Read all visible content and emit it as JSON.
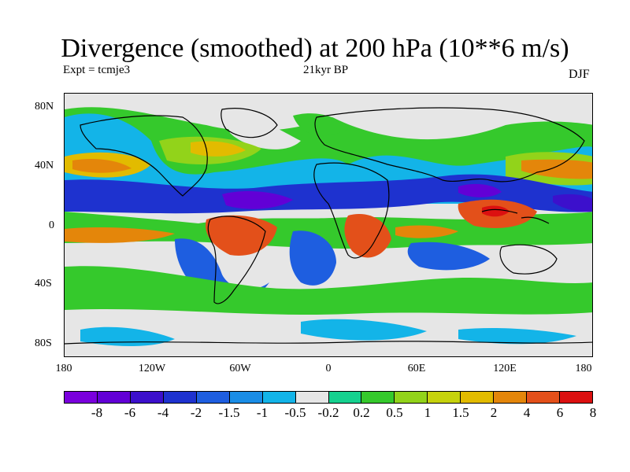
{
  "title": "Divergence (smoothed) at 200 hPa (10**6 m/s)",
  "subtitle_left": "Expt = tcmje3",
  "subtitle_center": "21kyr BP",
  "subtitle_right": "DJF",
  "map": {
    "projection": "equirectangular",
    "lon_range": [
      -180,
      180
    ],
    "lat_range": [
      -90,
      90
    ],
    "y_tick_labels": [
      "80N",
      "40N",
      "0",
      "40S",
      "80S"
    ],
    "x_tick_labels": [
      "180",
      "120W",
      "60W",
      "0",
      "60E",
      "120E",
      "180"
    ],
    "background_color": "#e6e6e6"
  },
  "colorbar": {
    "colors": [
      "#7a00dd",
      "#6200d6",
      "#3c10cc",
      "#1e32cf",
      "#1e5ee0",
      "#1a8de6",
      "#13b4e8",
      "#e6e6e6",
      "#15d18f",
      "#35c92c",
      "#92d31a",
      "#c6d20c",
      "#e2bb00",
      "#e4860a",
      "#e3501a",
      "#dc1010"
    ],
    "labels": [
      "-8",
      "-6",
      "-4",
      "-2",
      "-1.5",
      "-1",
      "-0.5",
      "-0.2",
      "0.2",
      "0.5",
      "1",
      "1.5",
      "2",
      "4",
      "6",
      "8"
    ]
  }
}
